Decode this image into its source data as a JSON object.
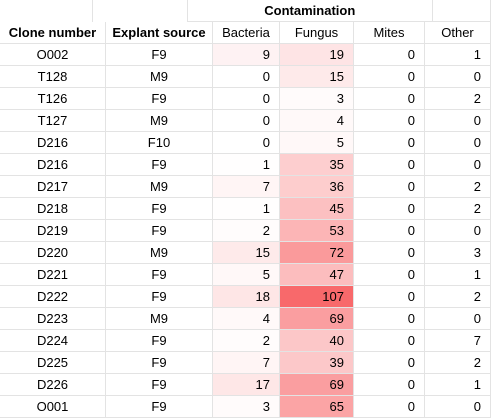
{
  "header": {
    "group_label": "Contamination",
    "columns": [
      "Clone number",
      "Explant source",
      "Bacteria",
      "Fungus",
      "Mites",
      "Other"
    ]
  },
  "rows": [
    {
      "clone": "O002",
      "source": "F9",
      "bacteria": "9",
      "fungus": "19",
      "mites": "0",
      "other": "1"
    },
    {
      "clone": "T128",
      "source": "M9",
      "bacteria": "0",
      "fungus": "15",
      "mites": "0",
      "other": "0"
    },
    {
      "clone": "T126",
      "source": "F9",
      "bacteria": "0",
      "fungus": "3",
      "mites": "0",
      "other": "2"
    },
    {
      "clone": "T127",
      "source": "M9",
      "bacteria": "0",
      "fungus": "4",
      "mites": "0",
      "other": "0"
    },
    {
      "clone": "D216",
      "source": "F10",
      "bacteria": "0",
      "fungus": "5",
      "mites": "0",
      "other": "0"
    },
    {
      "clone": "D216",
      "source": "F9",
      "bacteria": "1",
      "fungus": "35",
      "mites": "0",
      "other": "0"
    },
    {
      "clone": "D217",
      "source": "M9",
      "bacteria": "7",
      "fungus": "36",
      "mites": "0",
      "other": "2"
    },
    {
      "clone": "D218",
      "source": "F9",
      "bacteria": "1",
      "fungus": "45",
      "mites": "0",
      "other": "2"
    },
    {
      "clone": "D219",
      "source": "F9",
      "bacteria": "2",
      "fungus": "53",
      "mites": "0",
      "other": "0"
    },
    {
      "clone": "D220",
      "source": "M9",
      "bacteria": "15",
      "fungus": "72",
      "mites": "0",
      "other": "3"
    },
    {
      "clone": "D221",
      "source": "F9",
      "bacteria": "5",
      "fungus": "47",
      "mites": "0",
      "other": "1"
    },
    {
      "clone": "D222",
      "source": "F9",
      "bacteria": "18",
      "fungus": "107",
      "mites": "0",
      "other": "2"
    },
    {
      "clone": "D223",
      "source": "M9",
      "bacteria": "4",
      "fungus": "69",
      "mites": "0",
      "other": "0"
    },
    {
      "clone": "D224",
      "source": "F9",
      "bacteria": "2",
      "fungus": "40",
      "mites": "0",
      "other": "7"
    },
    {
      "clone": "D225",
      "source": "F9",
      "bacteria": "7",
      "fungus": "39",
      "mites": "0",
      "other": "2"
    },
    {
      "clone": "D226",
      "source": "F9",
      "bacteria": "17",
      "fungus": "69",
      "mites": "0",
      "other": "1"
    },
    {
      "clone": "O001",
      "source": "F9",
      "bacteria": "3",
      "fungus": "65",
      "mites": "0",
      "other": "0"
    }
  ],
  "heatmap": {
    "low_color": "#ffffff",
    "high_color": "#f8696b",
    "max_value": 107
  }
}
